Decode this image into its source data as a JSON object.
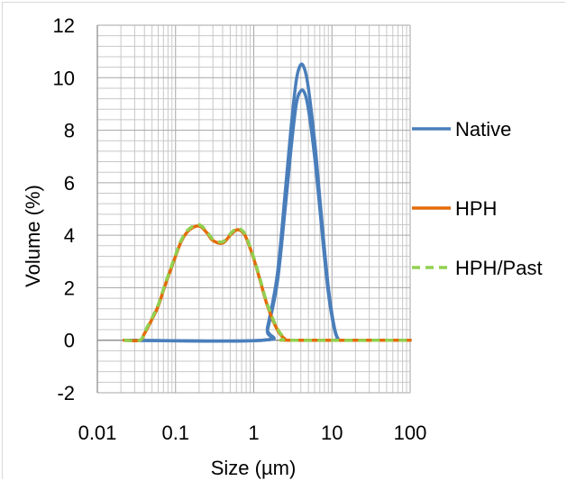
{
  "chart_data": {
    "type": "line",
    "xlabel": "Size (µm)",
    "ylabel": "Volume (%)",
    "xscale": "log",
    "xlim": [
      0.01,
      100
    ],
    "ylim": [
      -2,
      12
    ],
    "xticks": [
      "0.01",
      "0.1",
      "1",
      "10",
      "100"
    ],
    "yticks": [
      "-2",
      "0",
      "2",
      "4",
      "6",
      "8",
      "10",
      "12"
    ],
    "grid": true,
    "legend_position": "right",
    "series": [
      {
        "name": "Native",
        "color": "#4a7ebb",
        "dash": "solid",
        "x": [
          0.022,
          1.3,
          1.5,
          2.0,
          2.5,
          3.0,
          3.5,
          4.0,
          4.5,
          5.0,
          6.0,
          7.0,
          8.0,
          9.0,
          10.0,
          11.0,
          12.0,
          13.0,
          100
        ],
        "values": [
          0,
          0,
          0.4,
          2.2,
          4.9,
          7.3,
          9.0,
          9.5,
          9.4,
          8.8,
          7.0,
          5.0,
          3.2,
          1.8,
          0.9,
          0.3,
          0.05,
          0,
          0
        ]
      },
      {
        "name": "",
        "color": "#4a7ebb",
        "dash": "solid",
        "x": [
          0.022,
          1.3,
          1.5,
          2.0,
          2.5,
          3.0,
          3.5,
          4.0,
          4.5,
          5.0,
          6.0,
          7.0,
          8.0,
          9.0,
          10.0,
          11.0,
          12.0,
          13.0,
          100
        ],
        "values": [
          0,
          0,
          0.5,
          2.5,
          5.5,
          8.1,
          9.9,
          10.5,
          10.3,
          9.6,
          7.6,
          5.4,
          3.5,
          2.0,
          1.0,
          0.35,
          0.05,
          0,
          0
        ]
      },
      {
        "name": "HPH",
        "color": "#e46c0a",
        "dash": "solid",
        "x": [
          0.022,
          0.035,
          0.04,
          0.05,
          0.06,
          0.07,
          0.08,
          0.1,
          0.12,
          0.15,
          0.2,
          0.25,
          0.3,
          0.4,
          0.5,
          0.6,
          0.7,
          0.8,
          1.0,
          1.2,
          1.5,
          2.0,
          2.5,
          3.0,
          100
        ],
        "values": [
          0,
          0,
          0.25,
          0.8,
          1.3,
          1.9,
          2.4,
          3.2,
          3.8,
          4.2,
          4.35,
          4.1,
          3.8,
          3.7,
          4.0,
          4.2,
          4.15,
          3.9,
          3.1,
          2.3,
          1.3,
          0.4,
          0.05,
          0,
          0
        ]
      },
      {
        "name": "HPH/Past",
        "color": "#92d050",
        "dash": "dashed",
        "x": [
          0.022,
          0.035,
          0.04,
          0.05,
          0.06,
          0.07,
          0.08,
          0.1,
          0.12,
          0.15,
          0.2,
          0.25,
          0.3,
          0.4,
          0.5,
          0.6,
          0.7,
          0.8,
          1.0,
          1.2,
          1.5,
          2.0,
          2.5,
          3.0,
          100
        ],
        "values": [
          0,
          0,
          0.3,
          0.85,
          1.35,
          1.95,
          2.45,
          3.25,
          3.85,
          4.25,
          4.4,
          4.15,
          3.85,
          3.75,
          4.05,
          4.25,
          4.2,
          3.95,
          3.15,
          2.35,
          1.35,
          0.45,
          0.08,
          0,
          0
        ]
      }
    ]
  }
}
